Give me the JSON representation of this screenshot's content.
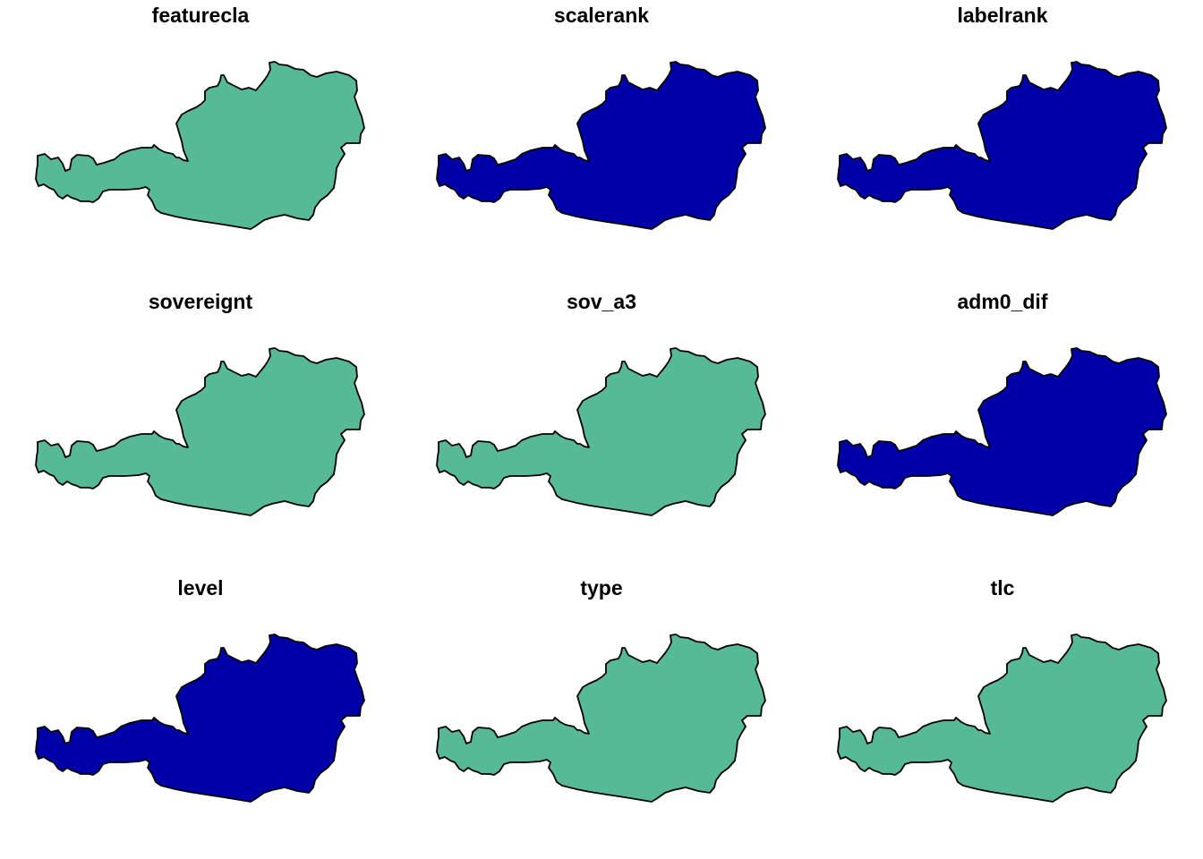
{
  "figure": {
    "type": "small-multiples choropleth map",
    "region_shape": "Austria country outline",
    "layout": "3x3",
    "outline_color": "#000000",
    "legend": "none",
    "colors": {
      "teal": "#57BA96",
      "blue": "#0000A8"
    },
    "panels": [
      {
        "title": "featurecla",
        "fill": "teal"
      },
      {
        "title": "scalerank",
        "fill": "blue"
      },
      {
        "title": "labelrank",
        "fill": "blue"
      },
      {
        "title": "sovereignt",
        "fill": "teal"
      },
      {
        "title": "sov_a3",
        "fill": "teal"
      },
      {
        "title": "adm0_dif",
        "fill": "blue"
      },
      {
        "title": "level",
        "fill": "blue"
      },
      {
        "title": "type",
        "fill": "teal"
      },
      {
        "title": "tlc",
        "fill": "teal"
      }
    ]
  }
}
